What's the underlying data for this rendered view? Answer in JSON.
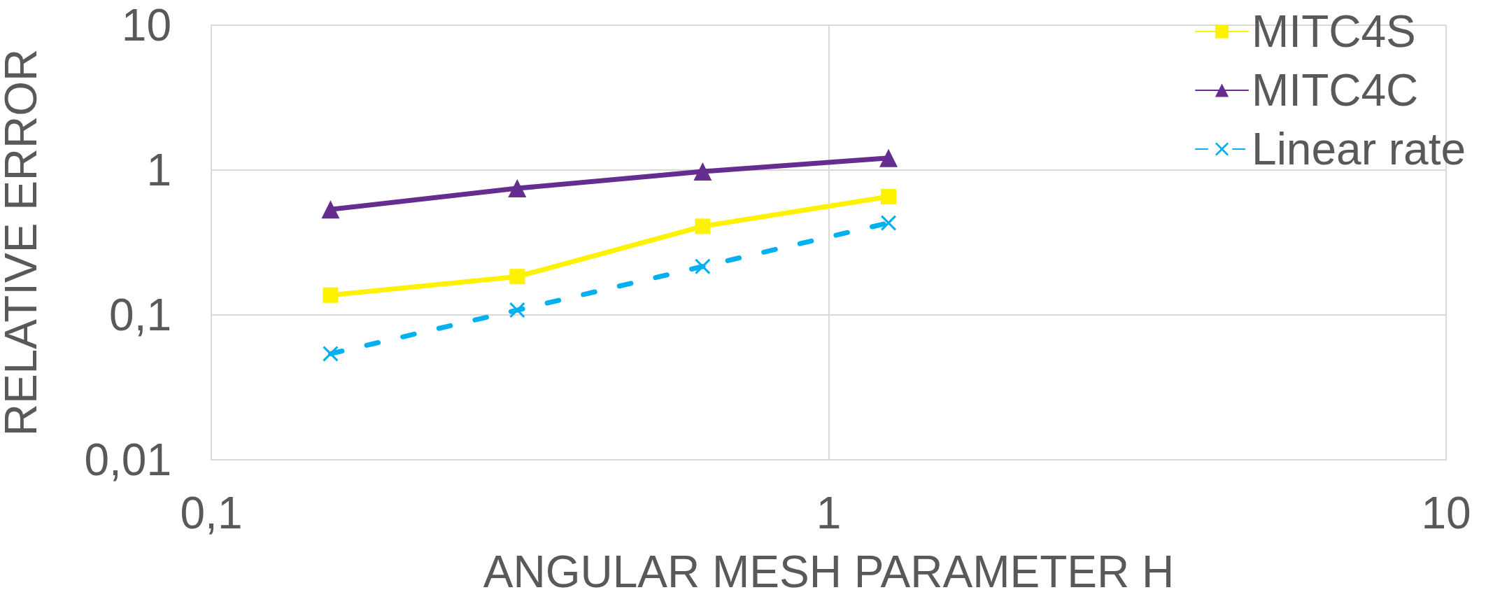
{
  "chart_data": {
    "type": "line",
    "xlabel": "ANGULAR MESH PARAMETER H",
    "ylabel": "RELATIVE ERROR",
    "x": [
      0.156,
      0.313,
      0.625,
      1.25
    ],
    "series": [
      {
        "name": "MITC4S",
        "color": "#fff200",
        "values": [
          0.137,
          0.184,
          0.409,
          0.655
        ],
        "marker": "square",
        "line_style": "solid"
      },
      {
        "name": "MITC4C",
        "color": "#662d91",
        "values": [
          0.535,
          0.748,
          0.977,
          1.21
        ],
        "marker": "triangle",
        "line_style": "solid"
      },
      {
        "name": "Linear rate",
        "color": "#00b0f0",
        "values": [
          0.054,
          0.108,
          0.216,
          0.432
        ],
        "marker": "cross",
        "line_style": "dashed"
      }
    ],
    "log": "xy",
    "xlim": [
      0.1,
      10
    ],
    "ylim": [
      0.01,
      10
    ],
    "xticks": [
      {
        "value": 0.1,
        "label": "0,1"
      },
      1,
      10
    ],
    "yticks": [
      {
        "value": 0.01,
        "label": "0,01"
      },
      {
        "value": 0.1,
        "label": "0,1"
      },
      1,
      10
    ],
    "grid": true,
    "legend": "top right"
  }
}
